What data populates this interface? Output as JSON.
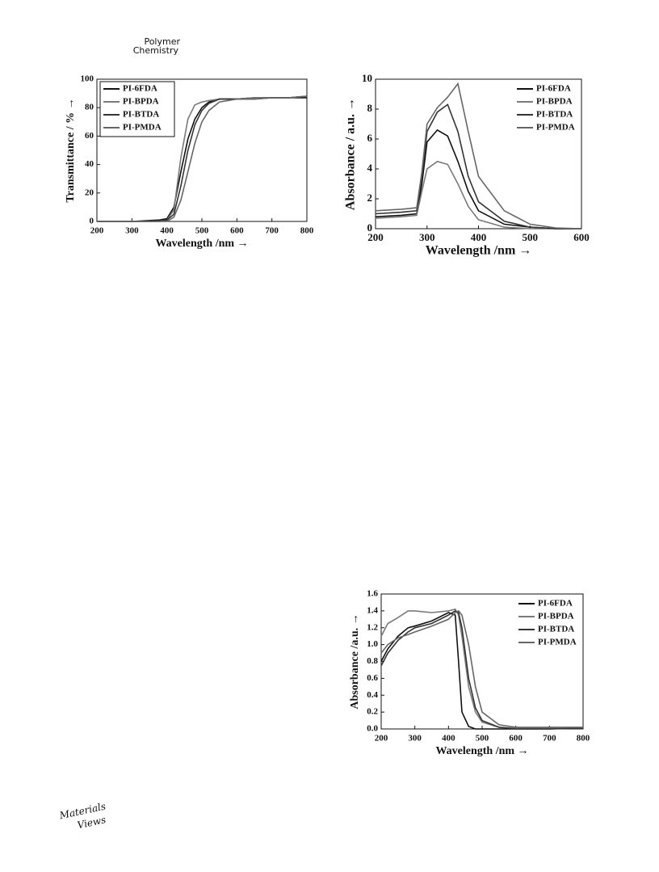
{
  "header": {
    "journal_line1": "Polymer",
    "journal_line2": "Chemistry"
  },
  "footer": {
    "logo_line1": "Materials",
    "logo_line2": "Views"
  },
  "chart_data": [
    {
      "type": "line",
      "xlabel": "Wavelength /nm →",
      "ylabel": "Transmittance / % →",
      "x": [
        200,
        300,
        380,
        400,
        420,
        440,
        460,
        480,
        500,
        520,
        550,
        600,
        650,
        700,
        750,
        800
      ],
      "xlim": [
        200,
        800
      ],
      "xticks": [
        200,
        300,
        400,
        500,
        600,
        700,
        800
      ],
      "ylim": [
        0,
        100
      ],
      "yticks": [
        0,
        20,
        40,
        60,
        80,
        100
      ],
      "legend": "upper left",
      "series": [
        {
          "name": "PI-6FDA",
          "color": "#111111",
          "values": [
            0,
            0,
            1,
            2,
            10,
            35,
            58,
            72,
            80,
            84,
            86,
            86,
            87,
            87,
            87,
            87
          ]
        },
        {
          "name": "PI-BPDA",
          "color": "#7a7a7a",
          "values": [
            0,
            0,
            0,
            1,
            8,
            45,
            72,
            82,
            84,
            85,
            86,
            86,
            87,
            87,
            87,
            88
          ]
        },
        {
          "name": "PI-BTDA",
          "color": "#333333",
          "values": [
            0,
            0,
            0,
            1,
            5,
            25,
            50,
            68,
            78,
            83,
            86,
            86,
            86,
            87,
            87,
            88
          ]
        },
        {
          "name": "PI-PMDA",
          "color": "#666666",
          "values": [
            0,
            0,
            0,
            0,
            3,
            15,
            35,
            55,
            70,
            78,
            84,
            86,
            86,
            87,
            87,
            88
          ]
        }
      ]
    },
    {
      "type": "line",
      "xlabel": "Wavelength /nm →",
      "ylabel": "Absorbance / a.u. →",
      "x": [
        200,
        250,
        280,
        290,
        300,
        320,
        340,
        360,
        380,
        400,
        450,
        500,
        550,
        600
      ],
      "xlim": [
        200,
        600
      ],
      "xticks": [
        200,
        300,
        400,
        500,
        600
      ],
      "ylim": [
        0,
        10
      ],
      "yticks": [
        0,
        2,
        4,
        6,
        8,
        10
      ],
      "legend": "upper right",
      "series": [
        {
          "name": "PI-6FDA",
          "color": "#111111",
          "values": [
            0.8,
            0.9,
            1.0,
            3,
            5.8,
            6.6,
            6.2,
            4.5,
            2.5,
            1.2,
            0.3,
            0.1,
            0,
            0
          ]
        },
        {
          "name": "PI-BPDA",
          "color": "#7a7a7a",
          "values": [
            0.7,
            0.8,
            0.9,
            2.5,
            4.0,
            4.5,
            4.3,
            3.0,
            1.5,
            0.6,
            0.1,
            0,
            0,
            0
          ]
        },
        {
          "name": "PI-BTDA",
          "color": "#333333",
          "values": [
            1.0,
            1.1,
            1.2,
            3.5,
            6.5,
            7.8,
            8.3,
            6.5,
            3.5,
            1.8,
            0.5,
            0.1,
            0,
            0
          ]
        },
        {
          "name": "PI-PMDA",
          "color": "#666666",
          "values": [
            1.2,
            1.3,
            1.4,
            3.8,
            7.0,
            8.1,
            8.8,
            9.7,
            6.5,
            3.5,
            1.2,
            0.3,
            0.05,
            0
          ]
        }
      ]
    },
    {
      "type": "line",
      "xlabel": "Wavelength /nm →",
      "ylabel": "Absorbance /a.u. →",
      "x": [
        200,
        220,
        250,
        280,
        300,
        350,
        400,
        420,
        430,
        440,
        460,
        480,
        500,
        550,
        600,
        700,
        800
      ],
      "xlim": [
        200,
        800
      ],
      "xticks": [
        200,
        300,
        400,
        500,
        600,
        700,
        800
      ],
      "ylim": [
        0,
        1.6
      ],
      "yticks": [
        {
          "value": 0,
          "label": "0.0"
        },
        0.2,
        0.4,
        0.6,
        0.8,
        {
          "value": 1,
          "label": "1.0"
        },
        1.2,
        1.4,
        1.6
      ],
      "legend": "upper right",
      "series": [
        {
          "name": "PI-6FDA",
          "color": "#111111",
          "values": [
            0.8,
            0.95,
            1.1,
            1.2,
            1.22,
            1.28,
            1.38,
            1.35,
            0.8,
            0.2,
            0.03,
            0,
            0,
            0,
            0,
            0,
            0.01
          ]
        },
        {
          "name": "PI-BPDA",
          "color": "#7a7a7a",
          "values": [
            1.1,
            1.25,
            1.32,
            1.4,
            1.4,
            1.38,
            1.4,
            1.42,
            1.35,
            1.1,
            0.5,
            0.2,
            0.08,
            0.02,
            0.01,
            0.01,
            0.01
          ]
        },
        {
          "name": "PI-BTDA",
          "color": "#333333",
          "values": [
            0.75,
            0.9,
            1.05,
            1.15,
            1.2,
            1.25,
            1.35,
            1.4,
            1.38,
            1.2,
            0.6,
            0.25,
            0.1,
            0.02,
            0,
            0,
            0.01
          ]
        },
        {
          "name": "PI-PMDA",
          "color": "#666666",
          "values": [
            0.9,
            1.0,
            1.08,
            1.12,
            1.15,
            1.22,
            1.3,
            1.38,
            1.4,
            1.35,
            1.0,
            0.5,
            0.2,
            0.05,
            0.02,
            0.02,
            0.02
          ]
        }
      ]
    }
  ]
}
